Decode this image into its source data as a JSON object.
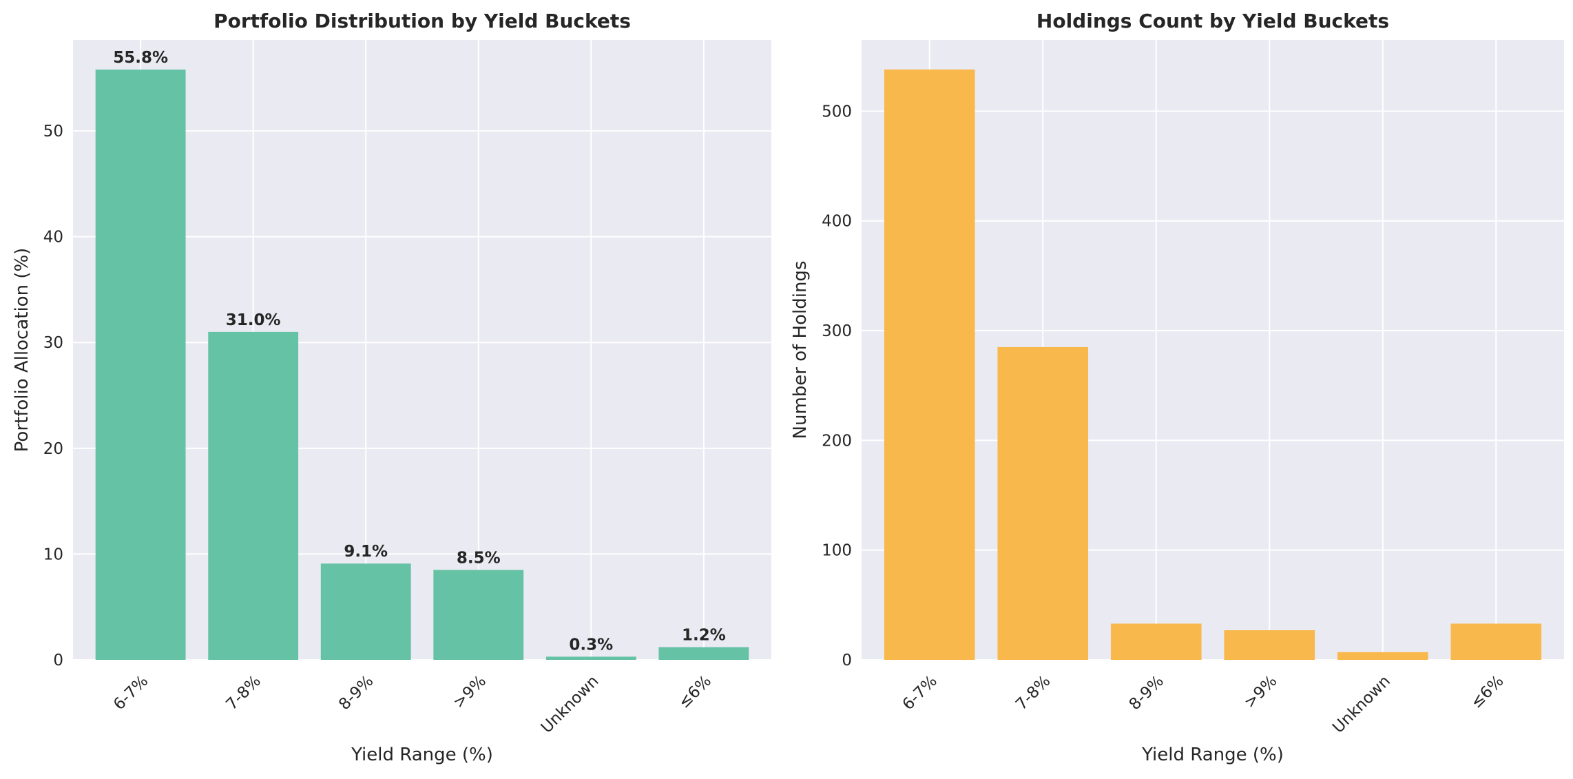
{
  "chart_data": [
    {
      "type": "bar",
      "title": "Portfolio Distribution by Yield Buckets",
      "xlabel": "Yield Range (%)",
      "ylabel": "Portfolio Allocation (%)",
      "categories": [
        "6-7%",
        "7-8%",
        "8-9%",
        ">9%",
        "Unknown",
        "≤6%"
      ],
      "values": [
        55.8,
        31.0,
        9.1,
        8.5,
        0.3,
        1.2
      ],
      "data_labels": [
        "55.8%",
        "31.0%",
        "9.1%",
        "8.5%",
        "0.3%",
        "1.2%"
      ],
      "ylim": [
        0,
        58.6
      ],
      "yticks": [
        0,
        10,
        20,
        30,
        40,
        50
      ],
      "grid": true,
      "color": "#66c2a5",
      "legend": "none"
    },
    {
      "type": "bar",
      "title": "Holdings Count by Yield Buckets",
      "xlabel": "Yield Range (%)",
      "ylabel": "Number of Holdings",
      "categories": [
        "6-7%",
        "7-8%",
        "8-9%",
        ">9%",
        "Unknown",
        "≤6%"
      ],
      "values": [
        538,
        285,
        33,
        27,
        7,
        33
      ],
      "ylim": [
        0,
        564.9
      ],
      "yticks": [
        0,
        100,
        200,
        300,
        400,
        500
      ],
      "grid": true,
      "color": "#f8b84b",
      "legend": "none"
    }
  ]
}
